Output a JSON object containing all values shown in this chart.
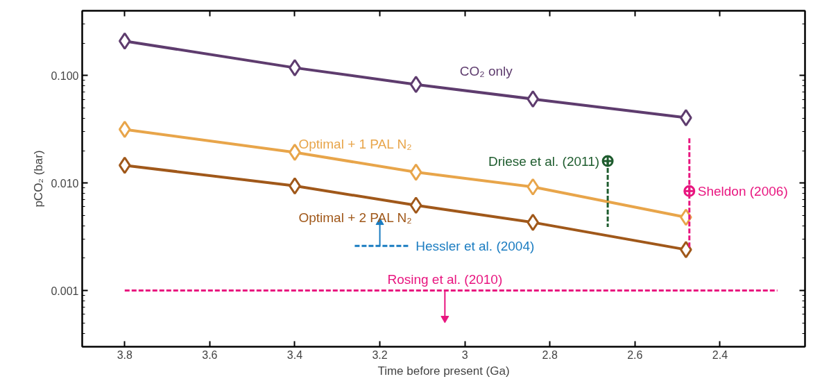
{
  "chart_data": {
    "type": "line",
    "xlabel": "Time before present (Ga)",
    "ylabel": "pCO₂ (bar)",
    "log": "y",
    "grid": false,
    "marker": "diamond",
    "line_style": "solid",
    "xlim": [
      3.9,
      2.2
    ],
    "xticks": [
      3.8,
      3.6,
      3.4,
      3.2,
      3.0,
      2.8,
      2.6,
      2.4
    ],
    "ylim": [
      0.0003,
      0.4
    ],
    "yticks": [
      {
        "value": 0.1,
        "label": "0.100"
      },
      {
        "value": 0.01,
        "label": "0.010"
      },
      {
        "value": 0.001,
        "label": "0.001"
      }
    ],
    "series": [
      {
        "name": "CO₂ only",
        "color": "#5e3c6e",
        "x": [
          3.8,
          3.4,
          3.115,
          2.84,
          2.48
        ],
        "values": [
          0.209,
          0.118,
          0.0825,
          0.0604,
          0.0405
        ]
      },
      {
        "name": "Optimal + 1 PAL N₂",
        "color": "#e8a54a",
        "x": [
          3.8,
          3.4,
          3.115,
          2.84,
          2.48
        ],
        "values": [
          0.0315,
          0.0193,
          0.0126,
          0.0092,
          0.0048
        ]
      },
      {
        "name": "Optimal + 2 PAL N₂",
        "color": "#a0581a",
        "x": [
          3.8,
          3.4,
          3.115,
          2.84,
          2.48
        ],
        "values": [
          0.0146,
          0.0094,
          0.0062,
          0.0043,
          0.0024
        ]
      },
      {
        "type": "scatter",
        "marker": "circle",
        "color": "#1e5c2e",
        "x": [
          2.664
        ],
        "values": [
          0.016
        ]
      },
      {
        "type": "line",
        "marker": "none",
        "line_style": "dashed",
        "color": "#1e5c2e",
        "x": [
          2.664,
          2.664
        ],
        "values": [
          0.016,
          0.0039
        ]
      },
      {
        "type": "scatter",
        "marker": "circle",
        "color": "#e8157f",
        "x": [
          2.472
        ],
        "values": [
          0.0084
        ]
      },
      {
        "type": "line",
        "marker": "none",
        "line_style": "dashed",
        "color": "#e8157f",
        "x": [
          2.472,
          2.472
        ],
        "values": [
          0.026,
          0.0025
        ]
      },
      {
        "type": "line",
        "marker": "none",
        "line_style": "dashed",
        "color": "#1a7cc1",
        "x": [
          3.259,
          3.132
        ],
        "values": [
          0.0026,
          0.0026
        ]
      },
      {
        "type": "line",
        "marker": "triangle",
        "color": "#1a7cc1",
        "x": [
          3.2,
          3.2
        ],
        "values": [
          0.0026,
          0.0043
        ]
      },
      {
        "type": "line",
        "marker": "none",
        "line_style": "dashed",
        "color": "#e8157f",
        "x": [
          3.8,
          2.265
        ],
        "values": [
          0.001,
          0.001
        ]
      },
      {
        "type": "line",
        "marker": "triangle",
        "color": "#e8157f",
        "x": [
          3.047,
          3.047
        ],
        "values": [
          0.001,
          0.00055
        ]
      }
    ],
    "annotations": [
      {
        "text": "Driese et al. (2011)",
        "x": 2.664,
        "y": 0.016
      },
      {
        "text": "Sheldon (2006)",
        "x": 2.472,
        "y": 0.0084
      },
      {
        "text": "Hessler et al. (2004)",
        "x": 3.132,
        "y": 0.0026
      },
      {
        "text": "Rosing et al. (2010)",
        "x": 3.047,
        "y": 0.001
      }
    ]
  }
}
